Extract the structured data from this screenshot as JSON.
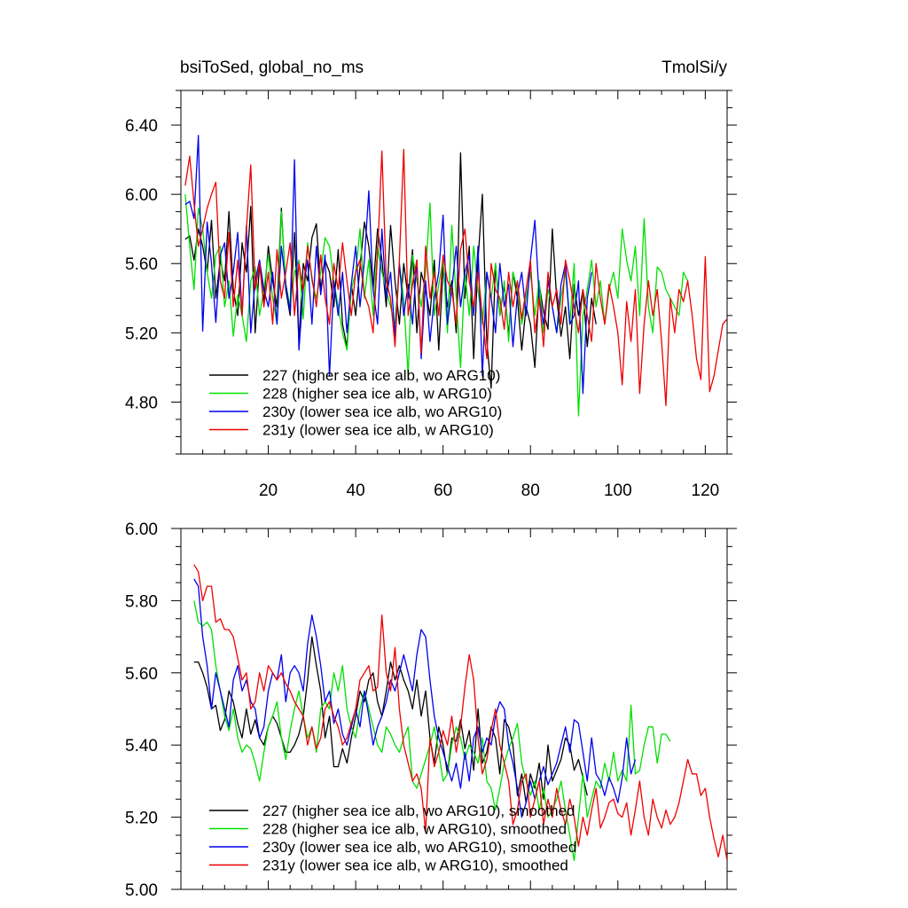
{
  "figure": {
    "title_left": "bsiToSed, global_no_ms",
    "title_right": "TmolSi/y"
  },
  "chart_data": [
    {
      "type": "line",
      "panel": "top",
      "xlim": [
        0,
        125
      ],
      "ylim": [
        4.5,
        6.6
      ],
      "xticks": [
        20,
        40,
        60,
        80,
        100,
        120
      ],
      "xtick_labels": [
        "20",
        "40",
        "60",
        "80",
        "100",
        "120"
      ],
      "yticks": [
        4.8,
        5.2,
        5.6,
        6.0,
        6.4
      ],
      "ytick_labels": [
        "4.80",
        "5.20",
        "5.60",
        "6.00",
        "6.40"
      ],
      "legend_position": "bottom-left",
      "series": [
        {
          "name": "227 (higher sea ice alb, wo ARG10)",
          "color": "#000000",
          "x_start": 1,
          "values": [
            5.74,
            5.76,
            5.62,
            5.8,
            5.7,
            5.55,
            5.85,
            5.4,
            5.62,
            5.5,
            5.9,
            5.45,
            5.3,
            5.72,
            5.55,
            5.93,
            5.2,
            5.6,
            5.38,
            5.7,
            5.5,
            5.35,
            5.92,
            5.45,
            5.3,
            5.78,
            5.15,
            5.6,
            5.5,
            5.75,
            5.83,
            5.45,
            5.62,
            5.55,
            5.35,
            5.68,
            5.25,
            5.12,
            5.48,
            5.3,
            5.58,
            5.84,
            5.7,
            5.45,
            5.8,
            5.62,
            5.35,
            5.82,
            5.5,
            5.25,
            5.6,
            5.4,
            5.68,
            5.2,
            5.55,
            5.45,
            5.3,
            5.62,
            5.1,
            5.58,
            5.35,
            5.5,
            5.2,
            6.24,
            5.4,
            5.7,
            5.05,
            5.62,
            6.0,
            5.15,
            4.88,
            5.6,
            5.3,
            5.48,
            5.18,
            5.55,
            5.4,
            5.1,
            5.35,
            5.25,
            5.0,
            5.48,
            5.32,
            5.22,
            5.8,
            5.4,
            5.18,
            5.35,
            5.05,
            5.48,
            5.3,
            5.45,
            5.12,
            5.4,
            5.25
          ]
        },
        {
          "name": "228 (higher sea ice alb, w ARG10)",
          "color": "#00e000",
          "x_start": 1,
          "values": [
            6.0,
            5.7,
            5.45,
            5.92,
            5.8,
            5.55,
            5.4,
            5.65,
            5.7,
            5.35,
            5.5,
            5.18,
            5.42,
            5.3,
            5.15,
            5.5,
            5.58,
            5.3,
            5.45,
            5.65,
            5.4,
            5.25,
            5.9,
            5.48,
            5.35,
            5.55,
            5.62,
            5.28,
            5.72,
            5.5,
            5.4,
            5.55,
            5.75,
            5.7,
            5.5,
            5.35,
            5.2,
            5.1,
            5.45,
            5.55,
            5.8,
            5.4,
            5.62,
            5.3,
            5.7,
            5.55,
            5.45,
            5.35,
            5.25,
            5.6,
            5.4,
            4.95,
            5.65,
            5.5,
            5.35,
            5.55,
            5.95,
            5.3,
            5.48,
            5.62,
            5.2,
            5.82,
            5.4,
            5.0,
            5.55,
            5.3,
            5.7,
            5.45,
            5.25,
            5.55,
            5.4,
            5.6,
            5.3,
            5.5,
            5.15,
            5.55,
            5.45,
            5.25,
            5.4,
            5.55,
            5.3,
            5.5,
            5.2,
            5.45,
            5.35,
            5.2,
            5.4,
            5.55,
            5.25,
            5.6,
            4.72,
            5.3,
            5.45,
            5.62,
            5.35,
            5.5,
            5.25,
            5.45,
            5.55,
            5.4,
            5.8,
            5.62,
            5.5,
            5.7,
            5.3,
            5.86,
            5.35,
            5.2,
            5.58,
            5.55,
            5.45,
            5.4,
            5.35,
            5.3,
            5.55,
            5.5
          ]
        },
        {
          "name": "230y (lower sea ice alb, wo ARG10)",
          "color": "#0000ee",
          "x_start": 1,
          "values": [
            5.94,
            5.96,
            5.86,
            6.34,
            5.21,
            5.84,
            5.6,
            5.26,
            5.65,
            5.72,
            5.4,
            5.55,
            5.78,
            5.3,
            5.82,
            5.2,
            5.5,
            5.62,
            5.45,
            5.35,
            5.55,
            5.25,
            5.7,
            5.48,
            5.32,
            6.2,
            5.1,
            5.45,
            5.62,
            5.25,
            5.7,
            5.42,
            5.65,
            4.95,
            5.5,
            5.3,
            5.55,
            5.2,
            5.48,
            5.7,
            5.35,
            5.62,
            6.02,
            5.45,
            5.25,
            5.8,
            5.4,
            5.55,
            5.18,
            5.6,
            5.3,
            5.48,
            5.25,
            5.62,
            5.05,
            5.5,
            5.15,
            5.4,
            5.55,
            5.88,
            5.25,
            5.45,
            5.7,
            5.35,
            5.55,
            5.65,
            5.3,
            5.7,
            4.95,
            5.55,
            5.4,
            5.2,
            5.6,
            5.35,
            5.48,
            5.12,
            5.42,
            5.55,
            5.3,
            5.62,
            5.85,
            5.4,
            5.25,
            5.5,
            5.35,
            5.2,
            5.48,
            5.6,
            5.25,
            5.3,
            5.5,
            4.85,
            5.4,
            5.55
          ]
        },
        {
          "name": "231y (lower sea ice alb, w ARG10)",
          "color": "#ee0000",
          "x_start": 1,
          "values": [
            6.05,
            6.22,
            5.95,
            5.7,
            5.8,
            5.92,
            6.0,
            6.07,
            5.5,
            5.4,
            5.78,
            5.35,
            5.62,
            5.3,
            5.8,
            6.17,
            5.45,
            5.6,
            5.35,
            5.55,
            5.25,
            5.68,
            5.4,
            5.55,
            5.72,
            5.3,
            5.6,
            5.45,
            5.7,
            5.52,
            5.35,
            5.65,
            5.4,
            5.25,
            5.6,
            5.45,
            5.72,
            5.5,
            5.3,
            5.55,
            5.62,
            5.42,
            5.35,
            5.2,
            5.65,
            6.25,
            5.5,
            5.4,
            5.12,
            5.62,
            6.26,
            5.3,
            5.48,
            5.62,
            5.08,
            5.7,
            5.4,
            5.55,
            5.3,
            5.65,
            5.5,
            5.45,
            5.25,
            5.68,
            5.8,
            5.5,
            5.35,
            5.55,
            5.3,
            5.05,
            5.6,
            5.45,
            5.4,
            5.22,
            5.55,
            5.35,
            5.5,
            5.28,
            5.45,
            5.62,
            5.2,
            5.4,
            5.12,
            5.55,
            5.35,
            5.45,
            5.25,
            5.62,
            5.5,
            5.35,
            5.2,
            5.45,
            5.3,
            5.15,
            5.6,
            5.4,
            5.25,
            5.48,
            5.35,
            5.2,
            4.9,
            5.38,
            5.15,
            5.45,
            4.85,
            5.25,
            5.5,
            5.3,
            5.45,
            5.15,
            4.78,
            5.4,
            5.2,
            5.45,
            5.38,
            5.5,
            5.3,
            5.05,
            4.93,
            5.64,
            4.86,
            4.95,
            5.1,
            5.25,
            5.28
          ]
        }
      ],
      "legend_entries": [
        "227 (higher sea ice alb, wo ARG10)",
        "228 (higher sea ice alb, w ARG10)",
        "230y (lower sea ice alb, wo ARG10)",
        "231y (lower sea ice alb, w ARG10)"
      ]
    },
    {
      "type": "line",
      "panel": "bottom",
      "xlim": [
        0,
        125
      ],
      "ylim": [
        5.0,
        6.0
      ],
      "xticks": [
        20,
        40,
        60,
        80,
        100,
        120
      ],
      "xtick_labels": [],
      "yticks": [
        5.0,
        5.2,
        5.4,
        5.6,
        5.8,
        6.0
      ],
      "ytick_labels": [
        "5.00",
        "5.20",
        "5.40",
        "5.60",
        "5.80",
        "6.00"
      ],
      "legend_position": "bottom-left",
      "series": [
        {
          "name": "227 (higher sea ice alb, wo ARG10), smoothed",
          "color": "#000000",
          "x_start": 3,
          "values": [
            5.63,
            5.63,
            5.6,
            5.56,
            5.5,
            5.51,
            5.44,
            5.47,
            5.55,
            5.52,
            5.46,
            5.42,
            5.5,
            5.43,
            5.47,
            5.42,
            5.4,
            5.45,
            5.48,
            5.46,
            5.42,
            5.38,
            5.38,
            5.4,
            5.43,
            5.48,
            5.58,
            5.7,
            5.62,
            5.55,
            5.42,
            5.48,
            5.34,
            5.34,
            5.39,
            5.35,
            5.42,
            5.48,
            5.55,
            5.52,
            5.58,
            5.6,
            5.52,
            5.48,
            5.55,
            5.63,
            5.58,
            5.62,
            5.58,
            5.55,
            5.5,
            5.58,
            5.48,
            5.55,
            5.42,
            5.35,
            5.45,
            5.4,
            5.32,
            5.42,
            5.41,
            5.47,
            5.39,
            5.44,
            5.33,
            5.5,
            5.35,
            5.38,
            5.45,
            5.42,
            5.32,
            5.47,
            5.45,
            5.4,
            5.26,
            5.32,
            5.24,
            5.32,
            5.28,
            5.35,
            5.25,
            5.4,
            5.3,
            5.33,
            5.36,
            5.42,
            5.4,
            5.33,
            5.36,
            5.31,
            5.26
          ]
        },
        {
          "name": "228 (higher sea ice alb, w ARG10), smoothed",
          "color": "#00e000",
          "x_start": 3,
          "values": [
            5.8,
            5.74,
            5.73,
            5.74,
            5.72,
            5.62,
            5.55,
            5.48,
            5.44,
            5.5,
            5.42,
            5.38,
            5.4,
            5.39,
            5.35,
            5.3,
            5.38,
            5.45,
            5.48,
            5.52,
            5.42,
            5.36,
            5.44,
            5.5,
            5.55,
            5.48,
            5.42,
            5.45,
            5.38,
            5.5,
            5.52,
            5.5,
            5.6,
            5.55,
            5.62,
            5.5,
            5.45,
            5.42,
            5.5,
            5.55,
            5.5,
            5.45,
            5.4,
            5.38,
            5.45,
            5.43,
            5.4,
            5.38,
            5.42,
            5.45,
            5.3,
            5.28,
            5.32,
            5.36,
            5.4,
            5.45,
            5.38,
            5.3,
            5.32,
            5.4,
            5.45,
            5.42,
            5.36,
            5.4,
            5.38,
            5.35,
            5.42,
            5.3,
            5.28,
            5.22,
            5.28,
            5.35,
            5.39,
            5.42,
            5.46,
            5.35,
            5.3,
            5.26,
            5.3,
            5.22,
            5.28,
            5.2,
            5.22,
            5.25,
            5.3,
            5.22,
            5.15,
            5.08,
            5.2,
            5.32,
            5.2,
            5.25,
            5.3,
            5.28,
            5.35,
            5.3,
            5.38,
            5.3,
            5.33,
            5.3,
            5.51,
            5.32,
            5.33,
            5.4,
            5.45,
            5.45,
            5.35,
            5.43,
            5.43,
            5.41
          ]
        },
        {
          "name": "230y (lower sea ice alb, wo ARG10), smoothed",
          "color": "#0000ee",
          "x_start": 3,
          "values": [
            5.86,
            5.84,
            5.7,
            5.62,
            5.5,
            5.6,
            5.55,
            5.5,
            5.45,
            5.58,
            5.62,
            5.55,
            5.58,
            5.52,
            5.5,
            5.42,
            5.45,
            5.55,
            5.6,
            5.58,
            5.65,
            5.52,
            5.6,
            5.62,
            5.6,
            5.55,
            5.68,
            5.76,
            5.7,
            5.62,
            5.52,
            5.55,
            5.46,
            5.5,
            5.43,
            5.4,
            5.45,
            5.5,
            5.45,
            5.55,
            5.48,
            5.4,
            5.45,
            5.48,
            5.52,
            5.58,
            5.55,
            5.6,
            5.65,
            5.6,
            5.55,
            5.65,
            5.72,
            5.7,
            5.58,
            5.48,
            5.42,
            5.38,
            5.34,
            5.3,
            5.35,
            5.28,
            5.38,
            5.3,
            5.42,
            5.45,
            5.38,
            5.42,
            5.4,
            5.48,
            5.52,
            5.5,
            5.4,
            5.35,
            5.28,
            5.2,
            5.24,
            5.3,
            5.25,
            5.3,
            5.34,
            5.29,
            5.32,
            5.35,
            5.4,
            5.45,
            5.38,
            5.47,
            5.46,
            5.38,
            5.3,
            5.42,
            5.32,
            5.3,
            5.26,
            5.31,
            5.28,
            5.24,
            5.31,
            5.42,
            5.32,
            5.36
          ]
        },
        {
          "name": "231y (lower sea ice alb, w ARG10), smoothed",
          "color": "#ee0000",
          "x_start": 3,
          "values": [
            5.9,
            5.88,
            5.8,
            5.84,
            5.84,
            5.74,
            5.75,
            5.72,
            5.72,
            5.7,
            5.64,
            5.58,
            5.6,
            5.5,
            5.52,
            5.6,
            5.55,
            5.62,
            5.6,
            5.58,
            5.6,
            5.57,
            5.55,
            5.52,
            5.5,
            5.48,
            5.4,
            5.45,
            5.39,
            5.42,
            5.5,
            5.52,
            5.48,
            5.45,
            5.4,
            5.42,
            5.46,
            5.5,
            5.58,
            5.6,
            5.62,
            5.55,
            5.56,
            5.76,
            5.6,
            5.55,
            5.67,
            5.5,
            5.4,
            5.35,
            5.3,
            5.32,
            5.28,
            5.16,
            5.42,
            5.34,
            5.38,
            5.44,
            5.4,
            5.48,
            5.38,
            5.45,
            5.56,
            5.65,
            5.58,
            5.42,
            5.32,
            5.36,
            5.44,
            5.5,
            5.4,
            5.35,
            5.3,
            5.18,
            5.22,
            5.3,
            5.32,
            5.2,
            5.25,
            5.3,
            5.18,
            5.25,
            5.2,
            5.28,
            5.22,
            5.18,
            5.25,
            5.2,
            5.12,
            5.2,
            5.15,
            5.22,
            5.28,
            5.17,
            5.2,
            5.24,
            5.25,
            5.21,
            5.2,
            5.24,
            5.15,
            5.22,
            5.3,
            5.2,
            5.15,
            5.25,
            5.2,
            5.17,
            5.22,
            5.18,
            5.2,
            5.24,
            5.3,
            5.36,
            5.32,
            5.32,
            5.26,
            5.28,
            5.2,
            5.14,
            5.09,
            5.15,
            5.08
          ]
        }
      ],
      "legend_entries": [
        "227 (higher sea ice alb, wo ARG10), smoothed",
        "228 (higher sea ice alb, w ARG10), smoothed",
        "230y (lower sea ice alb, wo ARG10), smoothed",
        "231y (lower sea ice alb, w ARG10), smoothed"
      ]
    }
  ]
}
